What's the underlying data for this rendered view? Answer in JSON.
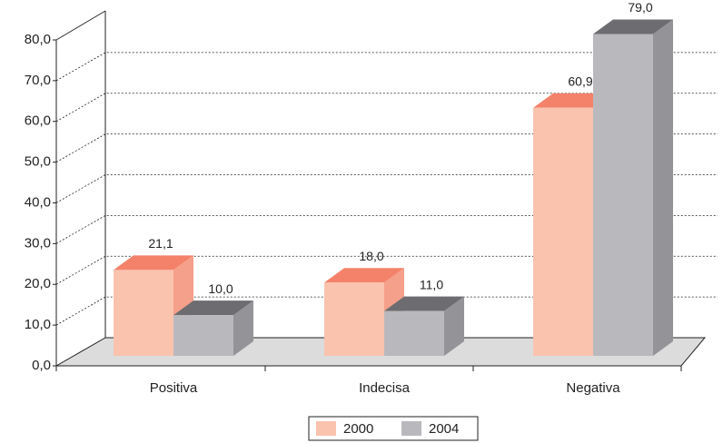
{
  "chart_data": {
    "type": "bar3d",
    "categories": [
      "Positiva",
      "Indecisa",
      "Negativa"
    ],
    "series": [
      {
        "name": "2000",
        "color": "#f9c3ae",
        "values": [
          21.1,
          18.0,
          60.9
        ],
        "value_labels": [
          "21,1",
          "18,0",
          "60,9"
        ]
      },
      {
        "name": "2004",
        "color": "#b9b9bd",
        "values": [
          10.0,
          11.0,
          79.0
        ],
        "value_labels": [
          "10,0",
          "11,0",
          "79,0"
        ]
      }
    ],
    "ylim": [
      0,
      80
    ],
    "yticks": [
      {
        "value": 0,
        "label": "0,0"
      },
      {
        "value": 10,
        "label": "10,0"
      },
      {
        "value": 20,
        "label": "20,0"
      },
      {
        "value": 30,
        "label": "30,0"
      },
      {
        "value": 40,
        "label": "40,0"
      },
      {
        "value": 50,
        "label": "50,0"
      },
      {
        "value": 60,
        "label": "60,0"
      },
      {
        "value": 70,
        "label": "70,0"
      },
      {
        "value": 80,
        "label": "80,0"
      }
    ],
    "grid": true,
    "legend": "bottom"
  }
}
